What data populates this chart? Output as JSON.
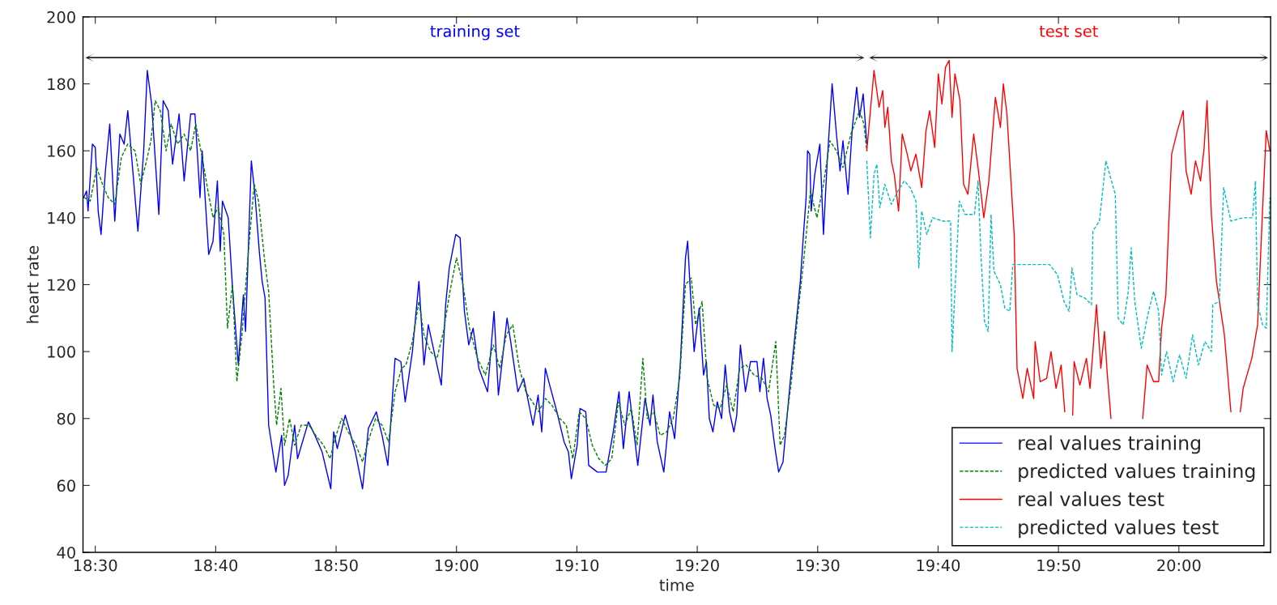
{
  "chart_data": {
    "type": "line",
    "xlabel": "time",
    "ylabel": "heart rate",
    "xlim": [
      18.483,
      20.127
    ],
    "ylim": [
      40,
      200
    ],
    "xticks": [
      {
        "value": 18.5,
        "label": "18:30"
      },
      {
        "value": 18.6666667,
        "label": "18:40"
      },
      {
        "value": 18.8333333,
        "label": "18:50"
      },
      {
        "value": 19.0,
        "label": "19:00"
      },
      {
        "value": 19.1666667,
        "label": "19:10"
      },
      {
        "value": 19.3333333,
        "label": "19:20"
      },
      {
        "value": 19.5,
        "label": "19:30"
      },
      {
        "value": 19.6666667,
        "label": "19:40"
      },
      {
        "value": 19.8333333,
        "label": "19:50"
      },
      {
        "value": 20.0,
        "label": "20:00"
      }
    ],
    "yticks": [
      40,
      60,
      80,
      100,
      120,
      140,
      160,
      180,
      200
    ],
    "grid": false,
    "legend": "bottom right",
    "marker": "none",
    "annotations": [
      "training set",
      "test set"
    ],
    "series": [
      {
        "name": "real values training",
        "color": "#0000ff",
        "line_style": "solid",
        "x": [
          18.484,
          18.488,
          18.49,
          18.496,
          18.5,
          18.504,
          18.508,
          18.514,
          18.52,
          18.527,
          18.534,
          18.54,
          18.545,
          18.55,
          18.559,
          18.567,
          18.572,
          18.578,
          18.588,
          18.594,
          18.601,
          18.607,
          18.616,
          18.623,
          18.632,
          18.638,
          18.645,
          18.648,
          18.657,
          18.663,
          18.669,
          18.673,
          18.676,
          18.684,
          18.69,
          18.698,
          18.705,
          18.708,
          18.716,
          18.721,
          18.727,
          18.731,
          18.735,
          18.74,
          18.75,
          18.758,
          18.762,
          18.767,
          18.776,
          18.78,
          18.795,
          18.804,
          18.814,
          18.826,
          18.83,
          18.835,
          18.846,
          18.85,
          18.86,
          18.87,
          18.878,
          18.889,
          18.897,
          18.905,
          18.915,
          18.923,
          18.929,
          18.939,
          18.948,
          18.955,
          18.961,
          18.967,
          18.973,
          18.979,
          18.985,
          18.99,
          18.999,
          19.005,
          19.011,
          19.017,
          19.023,
          19.031,
          19.043,
          19.052,
          19.058,
          19.07,
          19.075,
          19.085,
          19.093,
          19.106,
          19.113,
          19.118,
          19.123,
          19.129,
          19.139,
          19.149,
          19.155,
          19.159,
          19.167,
          19.171,
          19.179,
          19.183,
          19.195,
          19.207,
          19.217,
          19.225,
          19.231,
          19.239,
          19.251,
          19.261,
          19.268,
          19.272,
          19.278,
          19.287,
          19.295,
          19.302,
          19.31,
          19.317,
          19.32,
          19.324,
          19.329,
          19.336,
          19.342,
          19.346,
          19.35,
          19.355,
          19.361,
          19.367,
          19.372,
          19.378,
          19.384,
          19.388,
          19.393,
          19.4,
          19.407,
          19.416,
          19.42,
          19.425,
          19.43,
          19.435,
          19.441,
          19.446,
          19.452,
          19.462,
          19.47,
          19.476,
          19.48,
          19.484,
          19.486,
          19.489,
          19.491,
          19.496,
          19.503,
          19.508,
          19.513,
          19.52,
          19.526,
          19.531,
          19.535,
          19.542,
          19.548,
          19.554,
          19.558,
          19.563,
          19.568
        ],
        "values": [
          146,
          148,
          142,
          162,
          161,
          142,
          135,
          154,
          168,
          139,
          165,
          162,
          172,
          159,
          136,
          160,
          184,
          174,
          141,
          175,
          172,
          156,
          171,
          151,
          171,
          171,
          146,
          160,
          129,
          133,
          151,
          130,
          145,
          140,
          119,
          96,
          117,
          106,
          157,
          147,
          130,
          121,
          116,
          78,
          64,
          75,
          60,
          63,
          78,
          68,
          79,
          75,
          70,
          59,
          76,
          71,
          81,
          78,
          70,
          59,
          77,
          82,
          75,
          66,
          98,
          97,
          85,
          100,
          121,
          96,
          108,
          102,
          96,
          90,
          114,
          125,
          135,
          134,
          112,
          102,
          107,
          95,
          88,
          112,
          87,
          110,
          103,
          88,
          92,
          78,
          87,
          76,
          95,
          90,
          82,
          73,
          70,
          62,
          72,
          83,
          82,
          66,
          64,
          64,
          76,
          88,
          71,
          88,
          66,
          86,
          78,
          87,
          73,
          64,
          82,
          74,
          97,
          128,
          133,
          117,
          100,
          113,
          93,
          97,
          80,
          76,
          85,
          80,
          96,
          82,
          76,
          81,
          102,
          88,
          97,
          97,
          88,
          98,
          86,
          81,
          71,
          64,
          67,
          91,
          108,
          121,
          134,
          146,
          160,
          159,
          142,
          153,
          162,
          135,
          156,
          180,
          165,
          154,
          163,
          147,
          167,
          179,
          170,
          177,
          162
        ]
      },
      {
        "name": "predicted values training",
        "color": "#008000",
        "line_style": "dashed",
        "x": [
          18.485,
          18.493,
          18.502,
          18.51,
          18.518,
          18.527,
          18.536,
          18.545,
          18.555,
          18.563,
          18.572,
          18.577,
          18.583,
          18.59,
          18.598,
          18.605,
          18.614,
          18.623,
          18.632,
          18.639,
          18.648,
          18.656,
          18.663,
          18.67,
          18.678,
          18.683,
          18.69,
          18.696,
          18.703,
          18.712,
          18.72,
          18.726,
          18.734,
          18.74,
          18.747,
          18.751,
          18.757,
          18.762,
          18.769,
          18.776,
          18.785,
          18.796,
          18.805,
          18.816,
          18.825,
          18.832,
          18.841,
          18.85,
          18.861,
          18.87,
          18.879,
          18.888,
          18.897,
          18.906,
          18.915,
          18.924,
          18.93,
          18.939,
          18.948,
          18.955,
          18.964,
          18.973,
          18.982,
          18.991,
          19.0,
          19.009,
          19.018,
          19.029,
          19.04,
          19.051,
          19.06,
          19.069,
          19.078,
          19.087,
          19.096,
          19.105,
          19.114,
          19.123,
          19.132,
          19.143,
          19.152,
          19.161,
          19.17,
          19.179,
          19.188,
          19.197,
          19.206,
          19.215,
          19.224,
          19.233,
          19.242,
          19.25,
          19.258,
          19.264,
          19.273,
          19.282,
          19.291,
          19.3,
          19.309,
          19.317,
          19.325,
          19.331,
          19.34,
          19.347,
          19.356,
          19.365,
          19.374,
          19.383,
          19.392,
          19.401,
          19.412,
          19.423,
          19.432,
          19.442,
          19.448,
          19.454,
          19.463,
          19.472,
          19.481,
          19.49,
          19.499,
          19.508,
          19.517,
          19.526,
          19.535,
          19.546,
          19.558,
          19.564,
          19.568
        ],
        "values": [
          146,
          145,
          155,
          150,
          146,
          144,
          158,
          162,
          160,
          150,
          158,
          163,
          175,
          172,
          160,
          168,
          162,
          165,
          160,
          168,
          158,
          148,
          140,
          143,
          135,
          107,
          120,
          91,
          105,
          130,
          150,
          145,
          128,
          118,
          90,
          78,
          89,
          72,
          80,
          72,
          78,
          78,
          75,
          72,
          68,
          74,
          80,
          76,
          72,
          67,
          74,
          80,
          78,
          73,
          88,
          95,
          96,
          103,
          115,
          105,
          100,
          98,
          106,
          118,
          128,
          120,
          107,
          98,
          93,
          102,
          95,
          105,
          108,
          95,
          88,
          85,
          82,
          86,
          84,
          80,
          78,
          68,
          82,
          80,
          72,
          68,
          66,
          68,
          85,
          78,
          83,
          72,
          98,
          80,
          82,
          75,
          76,
          80,
          92,
          120,
          122,
          108,
          115,
          92,
          84,
          83,
          90,
          82,
          95,
          96,
          93,
          92,
          88,
          103,
          72,
          75,
          90,
          110,
          128,
          148,
          140,
          150,
          163,
          160,
          155,
          165,
          172,
          168,
          160
        ]
      },
      {
        "name": "real values test",
        "color": "#ff0000",
        "line_style": "solid",
        "x": [
          19.568,
          19.578,
          19.585,
          19.59,
          19.593,
          19.597,
          19.602,
          19.606,
          19.612,
          19.617,
          19.624,
          19.629,
          19.636,
          19.644,
          19.65,
          19.655,
          19.662,
          19.667,
          19.672,
          19.677,
          19.682,
          19.686,
          19.69,
          19.697,
          19.702,
          19.708,
          19.716,
          19.722,
          19.73,
          19.737,
          19.746,
          19.753,
          19.757,
          19.762,
          19.772,
          19.776,
          19.784,
          19.79,
          19.799,
          19.801,
          19.808,
          19.817,
          19.823,
          19.83,
          19.837,
          19.842,
          19.845,
          19.853,
          19.855,
          19.863,
          19.872,
          19.877,
          19.886,
          19.892,
          19.897,
          19.901,
          19.906,
          19.92,
          19.95,
          19.956,
          19.965,
          19.972,
          19.976,
          19.982,
          19.99,
          19.998,
          20.006,
          20.01,
          20.017,
          20.023,
          20.03,
          20.035,
          20.039,
          20.045,
          20.052,
          20.063,
          20.072,
          20.076,
          20.085,
          20.089,
          20.101,
          20.109,
          20.116,
          20.121,
          20.126
        ],
        "values": [
          160,
          184,
          173,
          178,
          167,
          173,
          157,
          153,
          142,
          165,
          159,
          154,
          159,
          149,
          166,
          172,
          161,
          183,
          174,
          185,
          187,
          170,
          183,
          175,
          150,
          147,
          165,
          155,
          140,
          151,
          176,
          167,
          180,
          171,
          135,
          95,
          86,
          95,
          86,
          103,
          91,
          92,
          100,
          89,
          96,
          82,
          null,
          81,
          97,
          90,
          98,
          89,
          114,
          95,
          106,
          93,
          80,
          null,
          80,
          96,
          91,
          91,
          107,
          117,
          159,
          166,
          172,
          154,
          147,
          157,
          151,
          161,
          175,
          141,
          121,
          105,
          82,
          null,
          82,
          89,
          98,
          108,
          143,
          166,
          160
        ]
      },
      {
        "name": "predicted values test",
        "color": "#00bfbf",
        "line_style": "dashed",
        "x": [
          19.568,
          19.573,
          19.578,
          19.582,
          19.586,
          19.593,
          19.602,
          19.611,
          19.62,
          19.628,
          19.636,
          19.64,
          19.644,
          19.651,
          19.659,
          19.673,
          19.684,
          19.686,
          19.69,
          19.696,
          19.704,
          19.717,
          19.722,
          19.726,
          19.731,
          19.736,
          19.74,
          19.744,
          19.753,
          19.759,
          19.766,
          19.77,
          19.784,
          19.806,
          19.821,
          19.832,
          19.841,
          19.848,
          19.852,
          19.859,
          19.87,
          19.879,
          19.881,
          19.89,
          19.899,
          19.908,
          19.912,
          19.916,
          19.923,
          19.93,
          19.934,
          19.939,
          19.948,
          19.957,
          19.965,
          19.972,
          19.976,
          19.983,
          19.992,
          20.001,
          20.01,
          20.019,
          20.027,
          20.036,
          20.045,
          20.047,
          20.056,
          20.062,
          20.072,
          20.089,
          20.102,
          20.106,
          20.109,
          20.116,
          20.121,
          20.126
        ],
        "values": [
          157,
          134,
          153,
          156,
          143,
          150,
          144,
          148,
          151,
          149,
          145,
          125,
          142,
          135,
          140,
          139,
          139,
          100,
          118,
          145,
          141,
          141,
          151,
          129,
          109,
          106,
          141,
          124,
          120,
          113,
          112,
          126,
          126,
          126,
          126,
          123,
          115,
          112,
          125,
          117,
          116,
          114,
          136,
          139,
          157,
          150,
          147,
          110,
          108,
          118,
          131,
          115,
          101,
          111,
          118,
          112,
          93,
          100,
          91,
          99,
          92,
          105,
          96,
          103,
          100,
          114,
          115,
          149,
          139,
          140,
          140,
          151,
          114,
          108,
          107,
          146
        ]
      }
    ]
  }
}
